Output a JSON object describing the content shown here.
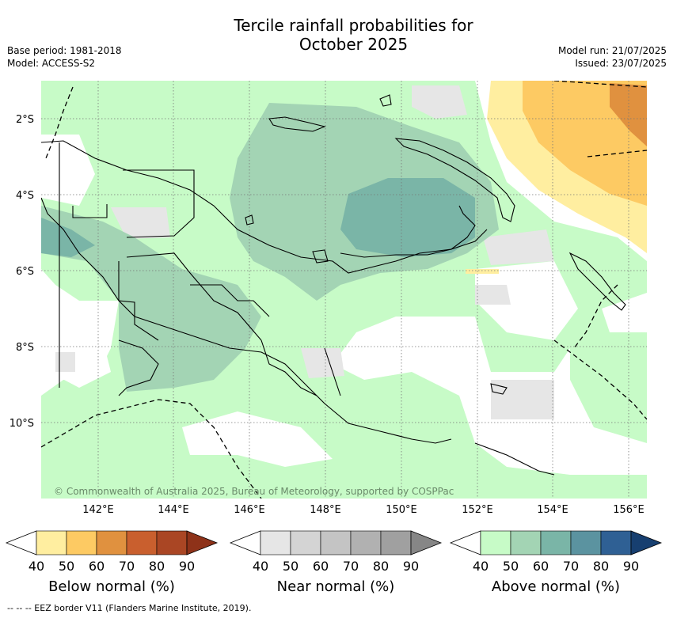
{
  "title_line1": "Tercile rainfall probabilities for",
  "title_line2": "October 2025",
  "base_period": "Base period: 1981-2018",
  "model": "Model: ACCESS-S2",
  "model_run": "Model run: 21/07/2025",
  "issued": "Issued: 23/07/2025",
  "copyright": "© Commonwealth of Australia 2025, Bureau of Meteorology, supported by COSPPac",
  "lat_labels": [
    "2°S",
    "4°S",
    "6°S",
    "8°S",
    "10°S"
  ],
  "lon_labels": [
    "142°E",
    "144°E",
    "146°E",
    "148°E",
    "150°E",
    "152°E",
    "154°E",
    "156°E"
  ],
  "legends": [
    {
      "label": "Below normal (%)",
      "ticks": [
        "40",
        "50",
        "60",
        "70",
        "80",
        "90"
      ],
      "colors": [
        "#ffeea0",
        "#fdca63",
        "#e0913f",
        "#c95f2e",
        "#aa4624",
        "#8e3219"
      ]
    },
    {
      "label": "Near normal (%)",
      "ticks": [
        "40",
        "50",
        "60",
        "70",
        "80",
        "90"
      ],
      "colors": [
        "#e6e6e6",
        "#d4d4d4",
        "#c4c4c4",
        "#b1b1b1",
        "#a0a0a0",
        "#868686"
      ]
    },
    {
      "label": "Above normal (%)",
      "ticks": [
        "40",
        "50",
        "60",
        "70",
        "80",
        "90"
      ],
      "colors": [
        "#c7fbc7",
        "#a3d4b4",
        "#7ab5a7",
        "#5b93a0",
        "#2f6094",
        "#173f70"
      ]
    }
  ],
  "footer": "--  --  -- EEZ border V11 (Flanders Marine Institute, 2019)."
}
